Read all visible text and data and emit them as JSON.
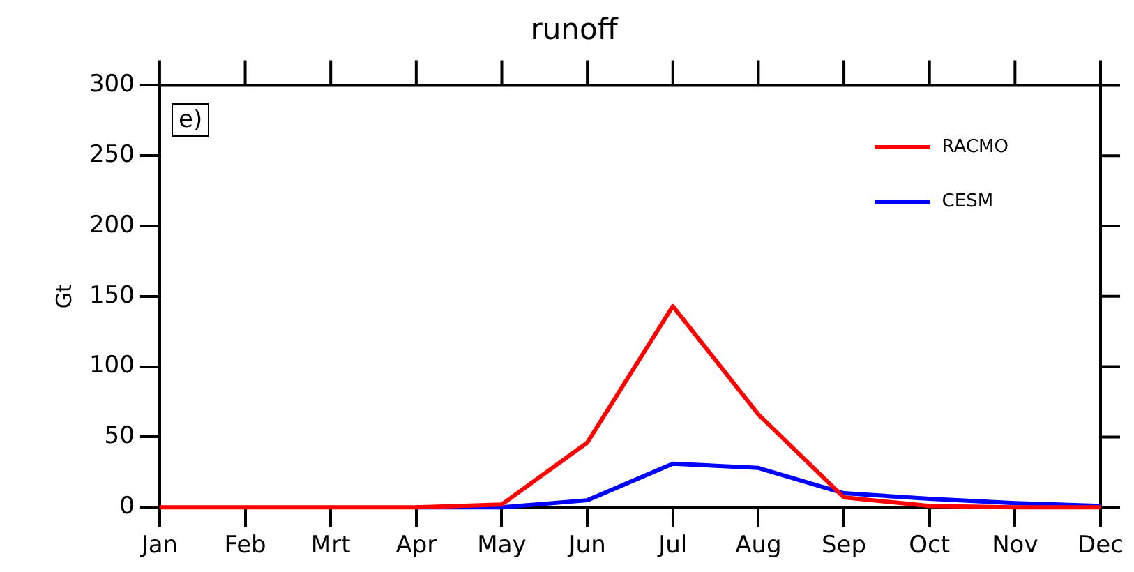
{
  "chart_data": {
    "type": "line",
    "title": "runoff",
    "ylabel": "Gt",
    "categories": [
      "Jan",
      "Feb",
      "Mrt",
      "Apr",
      "May",
      "Jun",
      "Jul",
      "Aug",
      "Sep",
      "Oct",
      "Nov",
      "Dec"
    ],
    "series": [
      {
        "name": "RACMO",
        "color": "#ff0000",
        "values": [
          0,
          0,
          0,
          0,
          2,
          46,
          143,
          66,
          7,
          1,
          0,
          0
        ]
      },
      {
        "name": "CESM",
        "color": "#0000ff",
        "values": [
          null,
          null,
          null,
          0,
          0,
          5,
          31,
          28,
          10,
          6,
          3,
          1
        ]
      }
    ],
    "ylim": [
      0,
      300
    ],
    "yticks": [
      0,
      50,
      100,
      150,
      200,
      250,
      300
    ],
    "grid": false,
    "legend": "top right",
    "marker": "none",
    "line_style": "solid",
    "annotations": [
      "e)"
    ]
  }
}
